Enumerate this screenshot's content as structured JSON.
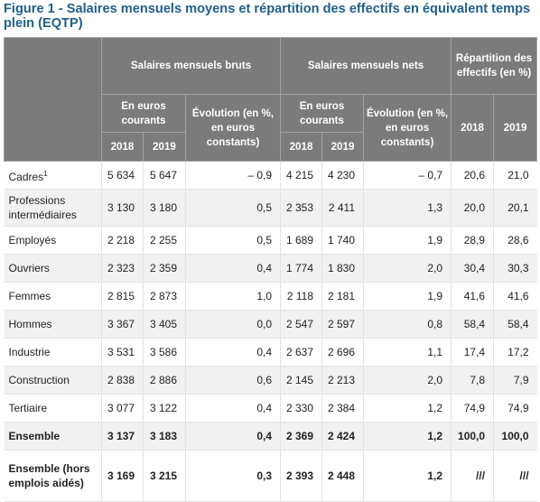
{
  "title": "Figure 1 - Salaires mensuels moyens et répartition des effectifs en équivalent temps plein (EQTP)",
  "headers": {
    "bruts": "Salaires mensuels bruts",
    "nets": "Salaires mensuels nets",
    "repartition": "Répartition des effectifs (en %)",
    "euros": "En euros courants",
    "evolution": "Évolution (en %, en euros constants)",
    "y2018": "2018",
    "y2019": "2019"
  },
  "rows": [
    {
      "label": "Cadres",
      "sup": "1",
      "b18": "5 634",
      "b19": "5 647",
      "bev": "– 0,9",
      "n18": "4 215",
      "n19": "4 230",
      "nev": "– 0,7",
      "r18": "20,6",
      "r19": "21,0"
    },
    {
      "label": "Professions intermédiaires",
      "sup": "",
      "b18": "3 130",
      "b19": "3 180",
      "bev": "0,5",
      "n18": "2 353",
      "n19": "2 411",
      "nev": "1,3",
      "r18": "20,0",
      "r19": "20,1"
    },
    {
      "label": "Employés",
      "sup": "",
      "b18": "2 218",
      "b19": "2 255",
      "bev": "0,5",
      "n18": "1 689",
      "n19": "1 740",
      "nev": "1,9",
      "r18": "28,9",
      "r19": "28,6"
    },
    {
      "label": "Ouvriers",
      "sup": "",
      "b18": "2 323",
      "b19": "2 359",
      "bev": "0,4",
      "n18": "1 774",
      "n19": "1 830",
      "nev": "2,0",
      "r18": "30,4",
      "r19": "30,3"
    },
    {
      "label": "Femmes",
      "sup": "",
      "b18": "2 815",
      "b19": "2 873",
      "bev": "1,0",
      "n18": "2 118",
      "n19": "2 181",
      "nev": "1,9",
      "r18": "41,6",
      "r19": "41,6"
    },
    {
      "label": "Hommes",
      "sup": "",
      "b18": "3 367",
      "b19": "3 405",
      "bev": "0,0",
      "n18": "2 547",
      "n19": "2 597",
      "nev": "0,8",
      "r18": "58,4",
      "r19": "58,4"
    },
    {
      "label": "Industrie",
      "sup": "",
      "b18": "3 531",
      "b19": "3 586",
      "bev": "0,4",
      "n18": "2 637",
      "n19": "2 696",
      "nev": "1,1",
      "r18": "17,4",
      "r19": "17,2"
    },
    {
      "label": "Construction",
      "sup": "",
      "b18": "2 838",
      "b19": "2 886",
      "bev": "0,6",
      "n18": "2 145",
      "n19": "2 213",
      "nev": "2,0",
      "r18": "7,8",
      "r19": "7,9"
    },
    {
      "label": "Tertiaire",
      "sup": "",
      "b18": "3 077",
      "b19": "3 122",
      "bev": "0,4",
      "n18": "2 330",
      "n19": "2 384",
      "nev": "1,2",
      "r18": "74,9",
      "r19": "74,9"
    },
    {
      "label": "Ensemble",
      "sup": "",
      "b18": "3 137",
      "b19": "3 183",
      "bev": "0,4",
      "n18": "2 369",
      "n19": "2 424",
      "nev": "1,2",
      "r18": "100,0",
      "r19": "100,0"
    },
    {
      "label": "Ensemble (hors emplois aidés)",
      "sup": "",
      "b18": "3 169",
      "b19": "3 215",
      "bev": "0,3",
      "n18": "2 393",
      "n19": "2 448",
      "nev": "1,2",
      "r18": "///",
      "r19": "///"
    }
  ]
}
